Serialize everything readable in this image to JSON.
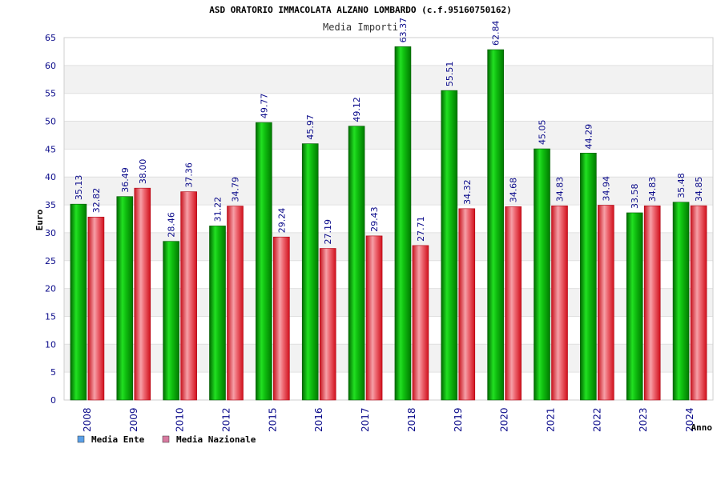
{
  "chart_data": {
    "type": "bar",
    "title": "ASD ORATORIO IMMACOLATA ALZANO LOMBARDO (c.f.95160750162)",
    "subtitle": "Media Importi",
    "xlabel": "Anno",
    "ylabel": "Euro",
    "ylim": [
      0,
      65
    ],
    "yticks": [
      "0",
      "5",
      "10",
      "15",
      "20",
      "25",
      "30",
      "35",
      "40",
      "45",
      "50",
      "55",
      "60",
      "65"
    ],
    "grid": "horizontal-bands",
    "legend_position": "bottom-left",
    "categories": [
      "2008",
      "2009",
      "2010",
      "2012",
      "2015",
      "2016",
      "2017",
      "2018",
      "2019",
      "2020",
      "2021",
      "2022",
      "2023",
      "2024"
    ],
    "series": [
      {
        "name": "Media Ente",
        "color": "#00b000",
        "legend_color": "#5aa0e8",
        "values": [
          35.13,
          36.49,
          28.46,
          31.22,
          49.77,
          45.97,
          49.12,
          63.37,
          55.51,
          62.84,
          45.05,
          44.29,
          33.58,
          35.48
        ],
        "labels": [
          "35.13",
          "36.49",
          "28.46",
          "31.22",
          "49.77",
          "45.97",
          "49.12",
          "63.37",
          "55.51",
          "62.84",
          "45.05",
          "44.29",
          "33.58",
          "35.48"
        ]
      },
      {
        "name": "Media Nazionale",
        "color": "#e8202a",
        "legend_color": "#d87aa0",
        "values": [
          32.82,
          38.0,
          37.36,
          34.79,
          29.24,
          27.19,
          29.43,
          27.71,
          34.32,
          34.68,
          34.83,
          34.94,
          34.83,
          34.85
        ],
        "labels": [
          "32.82",
          "38.00",
          "37.36",
          "34.79",
          "29.24",
          "27.19",
          "29.43",
          "27.71",
          "34.32",
          "34.68",
          "34.83",
          "34.94",
          "34.83",
          "34.85"
        ]
      }
    ]
  }
}
